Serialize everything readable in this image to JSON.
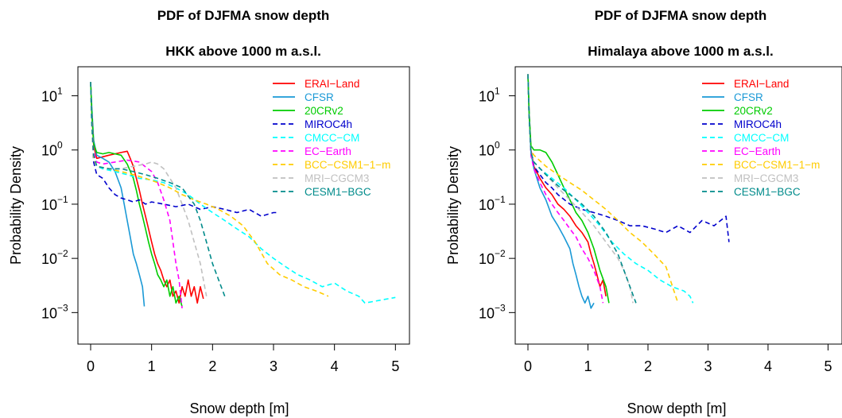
{
  "chart_data": [
    {
      "type": "line",
      "title": "PDF of DJFMA snow depth",
      "subtitle": "HKK above 1000 m a.s.l.",
      "xlabel": "Snow depth [m]",
      "ylabel": "Probability Density",
      "xlim": [
        0,
        5.1
      ],
      "ylim": [
        0.0003,
        30
      ],
      "yscale": "log",
      "xticks": [
        0,
        1,
        2,
        3,
        4,
        5
      ],
      "yticks": [
        {
          "base": "10",
          "exp": "1",
          "value": 10
        },
        {
          "base": "10",
          "exp": "0",
          "value": 1
        },
        {
          "base": "10",
          "exp": "−1",
          "value": 0.1
        },
        {
          "base": "10",
          "exp": "−2",
          "value": 0.01
        },
        {
          "base": "10",
          "exp": "−3",
          "value": 0.001
        }
      ],
      "legend_position": "top-right",
      "grid": false,
      "series": [
        {
          "name": "ERAI−Land",
          "color": "#ff0000",
          "dash": "solid",
          "x": [
            0,
            0.02,
            0.05,
            0.1,
            0.2,
            0.3,
            0.4,
            0.5,
            0.6,
            0.65,
            0.7,
            0.75,
            0.8,
            0.85,
            0.9,
            0.95,
            1.0,
            1.05,
            1.1,
            1.15,
            1.2,
            1.25,
            1.3,
            1.35,
            1.4,
            1.45,
            1.5,
            1.55,
            1.6,
            1.65,
            1.7,
            1.75,
            1.8,
            1.85
          ],
          "y": [
            18,
            5,
            1.2,
            0.7,
            0.75,
            0.8,
            0.85,
            0.9,
            0.95,
            0.7,
            0.5,
            0.3,
            0.18,
            0.1,
            0.06,
            0.035,
            0.02,
            0.012,
            0.008,
            0.006,
            0.004,
            0.003,
            0.004,
            0.002,
            0.0025,
            0.0015,
            0.003,
            0.002,
            0.004,
            0.002,
            0.003,
            0.0015,
            0.003,
            0.0018
          ]
        },
        {
          "name": "CFSR",
          "color": "#1a99d6",
          "dash": "solid",
          "x": [
            0,
            0.02,
            0.05,
            0.1,
            0.2,
            0.3,
            0.4,
            0.5,
            0.55,
            0.6,
            0.65,
            0.7,
            0.75,
            0.8,
            0.85,
            0.88
          ],
          "y": [
            18,
            6,
            1.5,
            0.8,
            0.7,
            0.6,
            0.4,
            0.2,
            0.1,
            0.05,
            0.025,
            0.012,
            0.008,
            0.005,
            0.003,
            0.0013
          ]
        },
        {
          "name": "20CRv2",
          "color": "#00cc00",
          "dash": "solid",
          "x": [
            0,
            0.02,
            0.05,
            0.1,
            0.2,
            0.3,
            0.4,
            0.5,
            0.6,
            0.7,
            0.75,
            0.8,
            0.85,
            0.9,
            0.95,
            1.0,
            1.05,
            1.1,
            1.15,
            1.2,
            1.25,
            1.3,
            1.35,
            1.4,
            1.45,
            1.5
          ],
          "y": [
            18,
            5,
            1.3,
            0.9,
            0.85,
            0.9,
            0.85,
            0.8,
            0.55,
            0.3,
            0.18,
            0.1,
            0.06,
            0.035,
            0.02,
            0.012,
            0.008,
            0.005,
            0.004,
            0.003,
            0.004,
            0.002,
            0.003,
            0.0015,
            0.002,
            0.0013
          ]
        },
        {
          "name": "MIROC4h",
          "color": "#0000cc",
          "dash": "dashed",
          "x": [
            0,
            0.02,
            0.05,
            0.1,
            0.2,
            0.3,
            0.4,
            0.5,
            0.6,
            0.7,
            0.8,
            0.9,
            1.0,
            1.2,
            1.4,
            1.6,
            1.8,
            2.0,
            2.2,
            2.4,
            2.6,
            2.8,
            3.0,
            3.05
          ],
          "y": [
            18,
            3,
            0.6,
            0.35,
            0.3,
            0.2,
            0.15,
            0.13,
            0.12,
            0.11,
            0.12,
            0.1,
            0.11,
            0.1,
            0.09,
            0.1,
            0.08,
            0.09,
            0.08,
            0.07,
            0.08,
            0.06,
            0.07,
            0.07
          ]
        },
        {
          "name": "CMCC−CM",
          "color": "#00ffff",
          "dash": "dashed",
          "x": [
            0,
            0.02,
            0.05,
            0.1,
            0.2,
            0.4,
            0.6,
            0.8,
            1.0,
            1.2,
            1.4,
            1.6,
            1.8,
            2.0,
            2.2,
            2.4,
            2.6,
            2.8,
            3.0,
            3.2,
            3.4,
            3.6,
            3.8,
            4.0,
            4.2,
            4.4,
            4.5,
            5.0
          ],
          "y": [
            18,
            3,
            0.8,
            0.5,
            0.45,
            0.4,
            0.35,
            0.3,
            0.28,
            0.25,
            0.2,
            0.15,
            0.1,
            0.07,
            0.05,
            0.035,
            0.025,
            0.015,
            0.01,
            0.007,
            0.005,
            0.004,
            0.003,
            0.0035,
            0.0025,
            0.002,
            0.0015,
            0.0019
          ]
        },
        {
          "name": "EC−Earth",
          "color": "#ff00ff",
          "dash": "dashed",
          "x": [
            0,
            0.02,
            0.05,
            0.1,
            0.2,
            0.4,
            0.6,
            0.8,
            1.0,
            1.1,
            1.2,
            1.3,
            1.35,
            1.4,
            1.45,
            1.5
          ],
          "y": [
            18,
            4,
            0.9,
            0.6,
            0.55,
            0.6,
            0.65,
            0.6,
            0.4,
            0.25,
            0.12,
            0.05,
            0.02,
            0.008,
            0.004,
            0.0012
          ]
        },
        {
          "name": "BCC−CSM1−1−m",
          "color": "#ffcc00",
          "dash": "dashed",
          "x": [
            0,
            0.02,
            0.05,
            0.1,
            0.3,
            0.5,
            0.7,
            0.9,
            1.1,
            1.3,
            1.5,
            1.7,
            1.9,
            2.1,
            2.3,
            2.5,
            2.7,
            2.9,
            3.1,
            3.3,
            3.5,
            3.7,
            3.9
          ],
          "y": [
            18,
            3,
            0.7,
            0.5,
            0.45,
            0.4,
            0.35,
            0.3,
            0.25,
            0.2,
            0.15,
            0.12,
            0.1,
            0.08,
            0.06,
            0.04,
            0.02,
            0.008,
            0.005,
            0.004,
            0.003,
            0.0025,
            0.002
          ]
        },
        {
          "name": "MRI−CGCM3",
          "color": "#c0c0c0",
          "dash": "dashed",
          "x": [
            0,
            0.02,
            0.05,
            0.1,
            0.3,
            0.5,
            0.7,
            0.9,
            1.0,
            1.1,
            1.2,
            1.3,
            1.4,
            1.5,
            1.6,
            1.7,
            1.8,
            1.9
          ],
          "y": [
            18,
            3,
            0.8,
            0.5,
            0.45,
            0.45,
            0.5,
            0.55,
            0.6,
            0.55,
            0.45,
            0.3,
            0.2,
            0.1,
            0.05,
            0.02,
            0.008,
            0.002
          ]
        },
        {
          "name": "CESM1−BGC",
          "color": "#008b8b",
          "dash": "dashed",
          "x": [
            0,
            0.02,
            0.05,
            0.1,
            0.3,
            0.5,
            0.7,
            0.9,
            1.1,
            1.3,
            1.5,
            1.7,
            1.8,
            1.9,
            2.0,
            2.1,
            2.2
          ],
          "y": [
            18,
            3,
            0.8,
            0.5,
            0.45,
            0.45,
            0.4,
            0.35,
            0.3,
            0.25,
            0.2,
            0.1,
            0.05,
            0.02,
            0.008,
            0.004,
            0.002
          ]
        }
      ]
    },
    {
      "type": "line",
      "title": "PDF of DJFMA snow depth",
      "subtitle": "Himalaya above 1000 m a.s.l.",
      "xlabel": "Snow depth [m]",
      "ylabel": "Probability Density",
      "xlim": [
        0,
        5.1
      ],
      "ylim": [
        0.0003,
        30
      ],
      "yscale": "log",
      "xticks": [
        0,
        1,
        2,
        3,
        4,
        5
      ],
      "yticks": [
        {
          "base": "10",
          "exp": "1",
          "value": 10
        },
        {
          "base": "10",
          "exp": "0",
          "value": 1
        },
        {
          "base": "10",
          "exp": "−1",
          "value": 0.1
        },
        {
          "base": "10",
          "exp": "−2",
          "value": 0.01
        },
        {
          "base": "10",
          "exp": "−3",
          "value": 0.001
        }
      ],
      "legend_position": "top-right",
      "grid": false,
      "series": [
        {
          "name": "ERAI−Land",
          "color": "#ff0000",
          "dash": "solid",
          "x": [
            0,
            0.02,
            0.05,
            0.1,
            0.2,
            0.3,
            0.4,
            0.5,
            0.6,
            0.7,
            0.8,
            0.9,
            1.0,
            1.05,
            1.1,
            1.15,
            1.2,
            1.25,
            1.3
          ],
          "y": [
            25,
            5,
            1.0,
            0.5,
            0.3,
            0.2,
            0.15,
            0.1,
            0.08,
            0.06,
            0.04,
            0.03,
            0.02,
            0.012,
            0.008,
            0.005,
            0.003,
            0.004,
            0.002
          ]
        },
        {
          "name": "CFSR",
          "color": "#1a99d6",
          "dash": "solid",
          "x": [
            0,
            0.02,
            0.05,
            0.1,
            0.2,
            0.3,
            0.4,
            0.5,
            0.6,
            0.7,
            0.75,
            0.8,
            0.85,
            0.9,
            0.95,
            1.0,
            1.05,
            1.1
          ],
          "y": [
            25,
            5,
            0.9,
            0.45,
            0.2,
            0.12,
            0.06,
            0.04,
            0.025,
            0.015,
            0.008,
            0.005,
            0.003,
            0.002,
            0.0015,
            0.002,
            0.0012,
            0.0015
          ]
        },
        {
          "name": "20CRv2",
          "color": "#00cc00",
          "dash": "solid",
          "x": [
            0,
            0.02,
            0.05,
            0.1,
            0.2,
            0.3,
            0.4,
            0.5,
            0.6,
            0.7,
            0.8,
            0.9,
            1.0,
            1.1,
            1.2,
            1.3,
            1.35
          ],
          "y": [
            25,
            5,
            1.2,
            1.0,
            1.0,
            0.9,
            0.6,
            0.35,
            0.2,
            0.12,
            0.07,
            0.05,
            0.03,
            0.015,
            0.006,
            0.003,
            0.0015
          ]
        },
        {
          "name": "MIROC4h",
          "color": "#0000cc",
          "dash": "dashed",
          "x": [
            0,
            0.02,
            0.05,
            0.1,
            0.2,
            0.3,
            0.4,
            0.5,
            0.7,
            0.9,
            1.1,
            1.3,
            1.5,
            1.7,
            1.9,
            2.1,
            2.3,
            2.5,
            2.7,
            2.9,
            3.1,
            3.3,
            3.35
          ],
          "y": [
            25,
            4,
            0.8,
            0.5,
            0.35,
            0.25,
            0.2,
            0.15,
            0.1,
            0.08,
            0.07,
            0.06,
            0.05,
            0.04,
            0.04,
            0.035,
            0.03,
            0.04,
            0.03,
            0.05,
            0.04,
            0.06,
            0.02
          ]
        },
        {
          "name": "CMCC−CM",
          "color": "#00ffff",
          "dash": "dashed",
          "x": [
            0,
            0.02,
            0.05,
            0.1,
            0.2,
            0.4,
            0.6,
            0.8,
            1.0,
            1.2,
            1.4,
            1.6,
            1.8,
            2.0,
            2.2,
            2.4,
            2.6,
            2.7,
            2.75
          ],
          "y": [
            25,
            4,
            0.9,
            0.6,
            0.45,
            0.3,
            0.2,
            0.12,
            0.07,
            0.04,
            0.02,
            0.012,
            0.008,
            0.006,
            0.004,
            0.003,
            0.0025,
            0.002,
            0.0015
          ]
        },
        {
          "name": "EC−Earth",
          "color": "#ff00ff",
          "dash": "dashed",
          "x": [
            0,
            0.02,
            0.05,
            0.1,
            0.2,
            0.3,
            0.4,
            0.5,
            0.6,
            0.7,
            0.8,
            0.9,
            1.0,
            1.1,
            1.2,
            1.25
          ],
          "y": [
            25,
            4,
            0.8,
            0.45,
            0.25,
            0.15,
            0.1,
            0.07,
            0.05,
            0.035,
            0.025,
            0.015,
            0.01,
            0.006,
            0.003,
            0.0015
          ]
        },
        {
          "name": "BCC−CSM1−1−m",
          "color": "#ffcc00",
          "dash": "dashed",
          "x": [
            0,
            0.02,
            0.05,
            0.1,
            0.3,
            0.5,
            0.7,
            0.9,
            1.1,
            1.3,
            1.5,
            1.7,
            1.9,
            2.1,
            2.3,
            2.5
          ],
          "y": [
            25,
            4,
            1.0,
            0.8,
            0.5,
            0.35,
            0.25,
            0.18,
            0.12,
            0.08,
            0.05,
            0.03,
            0.02,
            0.012,
            0.007,
            0.0015
          ]
        },
        {
          "name": "MRI−CGCM3",
          "color": "#c0c0c0",
          "dash": "dashed",
          "x": [
            0,
            0.02,
            0.05,
            0.1,
            0.3,
            0.5,
            0.7,
            0.9,
            1.1,
            1.3,
            1.5,
            1.6,
            1.7,
            1.75
          ],
          "y": [
            25,
            4,
            0.9,
            0.6,
            0.35,
            0.2,
            0.12,
            0.07,
            0.04,
            0.02,
            0.01,
            0.006,
            0.003,
            0.0015
          ]
        },
        {
          "name": "CESM1−BGC",
          "color": "#008b8b",
          "dash": "dashed",
          "x": [
            0,
            0.02,
            0.05,
            0.1,
            0.3,
            0.5,
            0.7,
            0.9,
            1.1,
            1.3,
            1.5,
            1.6,
            1.7,
            1.8
          ],
          "y": [
            25,
            4,
            0.9,
            0.6,
            0.35,
            0.22,
            0.15,
            0.1,
            0.06,
            0.03,
            0.012,
            0.006,
            0.003,
            0.0015
          ]
        }
      ]
    }
  ]
}
